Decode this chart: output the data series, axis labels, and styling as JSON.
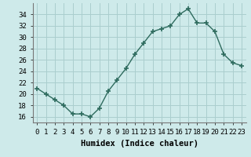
{
  "x": [
    0,
    1,
    2,
    3,
    4,
    5,
    6,
    7,
    8,
    9,
    10,
    11,
    12,
    13,
    14,
    15,
    16,
    17,
    18,
    19,
    20,
    21,
    22,
    23
  ],
  "y": [
    21,
    20,
    19,
    18,
    16.5,
    16.5,
    16,
    17.5,
    20.5,
    22.5,
    24.5,
    27,
    29,
    31,
    31.5,
    32,
    34,
    35,
    32.5,
    32.5,
    31,
    27,
    25.5,
    25
  ],
  "line_color": "#2e6b5e",
  "marker": "+",
  "marker_size": 4,
  "bg_color": "#ceeaea",
  "grid_color": "#aacece",
  "xlabel": "Humidex (Indice chaleur)",
  "ylim": [
    15,
    36
  ],
  "xlim": [
    -0.5,
    23.5
  ],
  "yticks": [
    16,
    18,
    20,
    22,
    24,
    26,
    28,
    30,
    32,
    34
  ],
  "xticks": [
    0,
    1,
    2,
    3,
    4,
    5,
    6,
    7,
    8,
    9,
    10,
    11,
    12,
    13,
    14,
    15,
    16,
    17,
    18,
    19,
    20,
    21,
    22,
    23
  ],
  "tick_label_fontsize": 6.5,
  "xlabel_fontsize": 7.5
}
